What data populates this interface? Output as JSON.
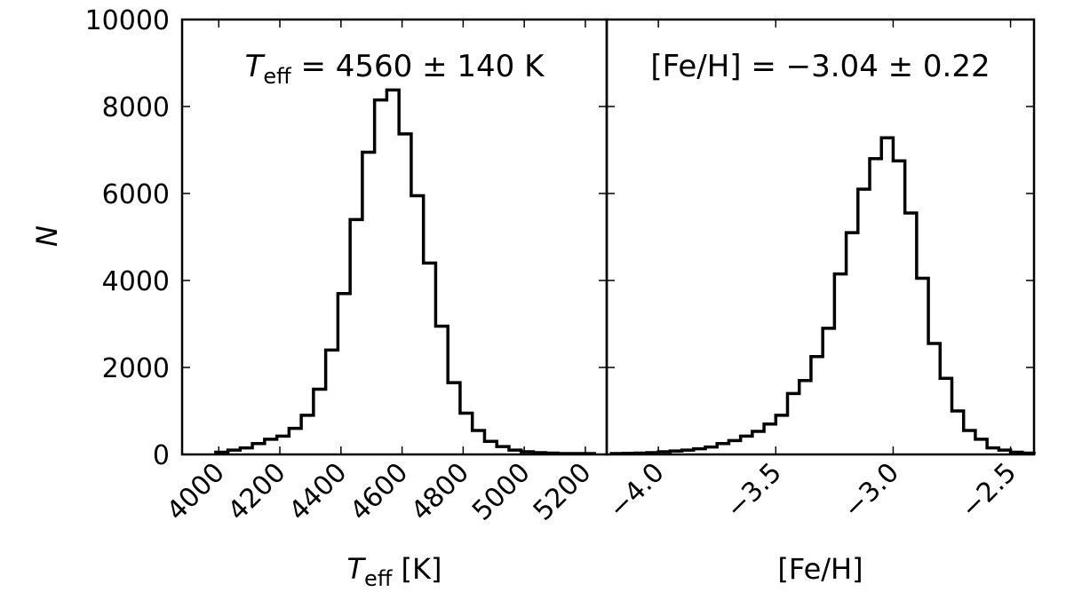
{
  "chart_data": [
    {
      "type": "bar",
      "histogram": true,
      "annotation": {
        "symbol": "T",
        "subscript": "eff",
        "text": " = 4560 ± 140 K"
      },
      "xlabel": {
        "symbol": "T",
        "subscript": "eff",
        "text": " [K]"
      },
      "ylabel": "N",
      "xlim": [
        3880,
        5270
      ],
      "ylim": [
        0,
        10000
      ],
      "xticks": [
        4000,
        4200,
        4400,
        4600,
        4800,
        5000,
        5200
      ],
      "xtick_labels": [
        "4000",
        "4200",
        "4400",
        "4600",
        "4800",
        "5000",
        "5200"
      ],
      "yticks": [
        0,
        2000,
        4000,
        6000,
        8000,
        10000
      ],
      "ytick_labels": [
        "0",
        "2000",
        "4000",
        "6000",
        "8000",
        "10000"
      ],
      "bin_edges": [
        3990,
        4030,
        4070,
        4110,
        4150,
        4190,
        4230,
        4270,
        4310,
        4350,
        4390,
        4430,
        4470,
        4510,
        4550,
        4590,
        4630,
        4670,
        4710,
        4750,
        4790,
        4830,
        4870,
        4910,
        4950,
        4990,
        5030,
        5070,
        5110,
        5150,
        5190,
        5230
      ],
      "counts": [
        50,
        100,
        150,
        250,
        350,
        420,
        600,
        900,
        1500,
        2400,
        3700,
        5400,
        6950,
        8150,
        8380,
        7370,
        5950,
        4400,
        2950,
        1650,
        950,
        550,
        300,
        180,
        100,
        60,
        40,
        30,
        20,
        20,
        20
      ]
    },
    {
      "type": "bar",
      "histogram": true,
      "annotation": {
        "text": "[Fe/H] = −3.04 ± 0.22"
      },
      "xlabel": "[Fe/H]",
      "ylabel": "",
      "xlim": [
        -4.22,
        -2.4
      ],
      "ylim": [
        0,
        10000
      ],
      "xticks": [
        -4.0,
        -3.5,
        -3.0,
        -2.5
      ],
      "xtick_labels": [
        "−4.0",
        "−3.5",
        "−3.0",
        "−2.5"
      ],
      "yticks": [
        0,
        2000,
        4000,
        6000,
        8000,
        10000
      ],
      "bin_edges": [
        -4.2,
        -4.15,
        -4.1,
        -4.05,
        -4.0,
        -3.95,
        -3.9,
        -3.85,
        -3.8,
        -3.75,
        -3.7,
        -3.65,
        -3.6,
        -3.55,
        -3.5,
        -3.45,
        -3.4,
        -3.35,
        -3.3,
        -3.25,
        -3.2,
        -3.15,
        -3.1,
        -3.05,
        -3.0,
        -2.95,
        -2.9,
        -2.85,
        -2.8,
        -2.75,
        -2.7,
        -2.65,
        -2.6,
        -2.55,
        -2.5,
        -2.45,
        -2.4
      ],
      "counts": [
        20,
        25,
        30,
        40,
        60,
        80,
        100,
        130,
        170,
        250,
        320,
        420,
        530,
        700,
        900,
        1400,
        1700,
        2250,
        2900,
        4150,
        5100,
        6100,
        6800,
        7280,
        6750,
        5550,
        4050,
        2550,
        1750,
        1000,
        550,
        350,
        150,
        100,
        50,
        30
      ]
    }
  ]
}
